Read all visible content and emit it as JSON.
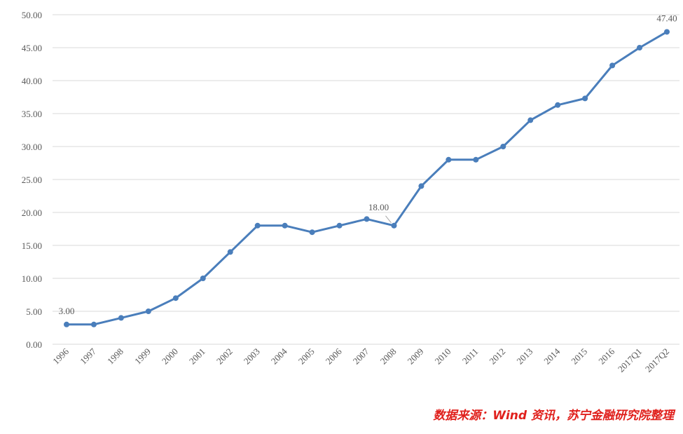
{
  "chart_data": {
    "type": "line",
    "categories": [
      "1996",
      "1997",
      "1998",
      "1999",
      "2000",
      "2001",
      "2002",
      "2003",
      "2004",
      "2005",
      "2006",
      "2007",
      "2008",
      "2009",
      "2010",
      "2011",
      "2012",
      "2013",
      "2014",
      "2015",
      "2016",
      "2017Q1",
      "2017Q2"
    ],
    "values": [
      3.0,
      3.0,
      4.0,
      5.0,
      7.0,
      10.0,
      14.0,
      18.0,
      18.0,
      17.0,
      18.0,
      19.0,
      18.0,
      24.0,
      28.0,
      28.0,
      30.0,
      34.0,
      36.3,
      37.3,
      42.3,
      45.0,
      47.4
    ],
    "value_labels": [
      "3.00",
      null,
      null,
      null,
      null,
      null,
      null,
      null,
      null,
      null,
      null,
      null,
      "18.00",
      null,
      null,
      null,
      null,
      null,
      null,
      null,
      null,
      null,
      "47.40"
    ],
    "color": "#4a7ebb",
    "ylim": [
      0,
      50
    ],
    "yticks": [
      {
        "value": 0,
        "label": "0.00"
      },
      {
        "value": 5,
        "label": "5.00"
      },
      {
        "value": 10,
        "label": "10.00"
      },
      {
        "value": 15,
        "label": "15.00"
      },
      {
        "value": 20,
        "label": "20.00"
      },
      {
        "value": 25,
        "label": "25.00"
      },
      {
        "value": 30,
        "label": "30.00"
      },
      {
        "value": 35,
        "label": "35.00"
      },
      {
        "value": 40,
        "label": "40.00"
      },
      {
        "value": 45,
        "label": "45.00"
      },
      {
        "value": 50,
        "label": "50.00"
      }
    ],
    "grid": true,
    "source": "数据来源：Wind 资讯，苏宁金融研究院整理"
  }
}
